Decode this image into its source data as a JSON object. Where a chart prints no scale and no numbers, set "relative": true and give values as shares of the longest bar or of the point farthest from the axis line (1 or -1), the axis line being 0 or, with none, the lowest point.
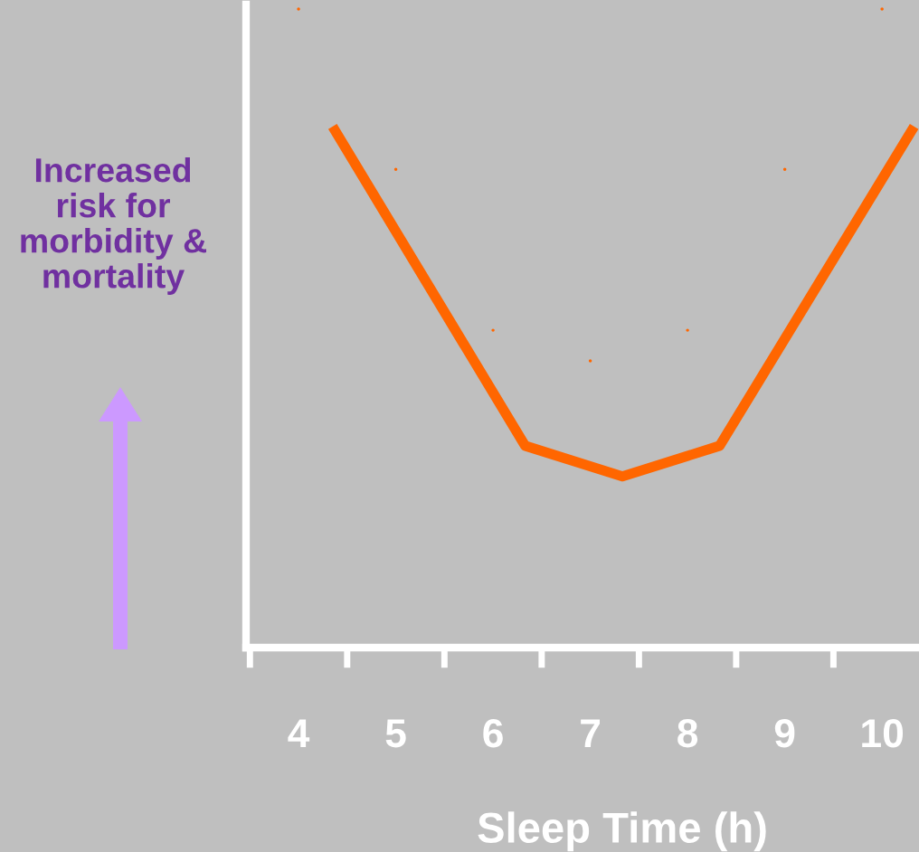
{
  "chart_data": {
    "type": "line",
    "relative": true,
    "xlabel": "Sleep Time (h)",
    "xlim": [
      3.46,
      10.38
    ],
    "xticks": [
      4,
      5,
      6,
      7,
      8,
      9,
      10
    ],
    "series": [
      {
        "color": "#ff6600",
        "x": [
          4.35,
          6.33,
          7.33,
          8.33,
          10.33
        ],
        "values": [
          0.816,
          0.316,
          0.268,
          0.316,
          0.816
        ]
      },
      {
        "type": "scatter",
        "color": "#ff6600",
        "x": [
          4,
          5,
          6,
          7,
          8,
          9,
          10
        ],
        "values": [
          1,
          0.749,
          0.497,
          0.449,
          0.497,
          0.749,
          1
        ]
      }
    ],
    "annotations": [
      "Increased\nrisk for\nmorbidity &\nmortality"
    ],
    "grid": false,
    "legend": false
  }
}
